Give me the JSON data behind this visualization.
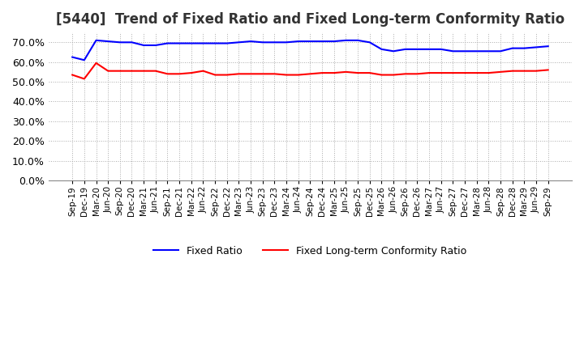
{
  "title": "[5440]  Trend of Fixed Ratio and Fixed Long-term Conformity Ratio",
  "title_fontsize": 12,
  "fixed_ratio": {
    "label": "Fixed Ratio",
    "color": "#0000FF",
    "values": [
      62.5,
      61.0,
      71.0,
      70.5,
      70.0,
      70.0,
      68.5,
      68.5,
      69.5,
      69.5,
      69.5,
      69.5,
      69.5,
      69.5,
      70.0,
      70.5,
      70.0,
      70.0,
      70.0,
      70.5,
      70.5,
      70.5,
      70.5,
      71.0,
      71.0,
      70.0,
      66.5,
      65.5,
      66.5,
      66.5,
      66.5,
      66.5,
      65.5,
      65.5,
      65.5,
      65.5,
      65.5,
      67.0,
      67.0,
      67.5,
      68.0
    ]
  },
  "fixed_lt_ratio": {
    "label": "Fixed Long-term Conformity Ratio",
    "color": "#FF0000",
    "values": [
      53.5,
      51.5,
      59.5,
      55.5,
      55.5,
      55.5,
      55.5,
      55.5,
      54.0,
      54.0,
      54.5,
      55.5,
      53.5,
      53.5,
      54.0,
      54.0,
      54.0,
      54.0,
      53.5,
      53.5,
      54.0,
      54.5,
      54.5,
      55.0,
      54.5,
      54.5,
      53.5,
      53.5,
      54.0,
      54.0,
      54.5,
      54.5,
      54.5,
      54.5,
      54.5,
      54.5,
      55.0,
      55.5,
      55.5,
      55.5,
      56.0
    ]
  },
  "x_labels": [
    "Sep-19",
    "Dec-19",
    "Mar-20",
    "Jun-20",
    "Sep-20",
    "Dec-20",
    "Mar-21",
    "Jun-21",
    "Sep-21",
    "Dec-21",
    "Mar-22",
    "Jun-22",
    "Sep-22",
    "Dec-22",
    "Mar-23",
    "Jun-23",
    "Sep-23",
    "Dec-23",
    "Mar-24",
    "Jun-24",
    "Sep-24",
    "Dec-24"
  ],
  "ylim": [
    0.0,
    75.0
  ],
  "yticks": [
    0.0,
    10.0,
    20.0,
    30.0,
    40.0,
    50.0,
    60.0,
    70.0
  ],
  "background_color": "#FFFFFF",
  "grid_color": "#AAAAAA",
  "legend_ncol": 2
}
